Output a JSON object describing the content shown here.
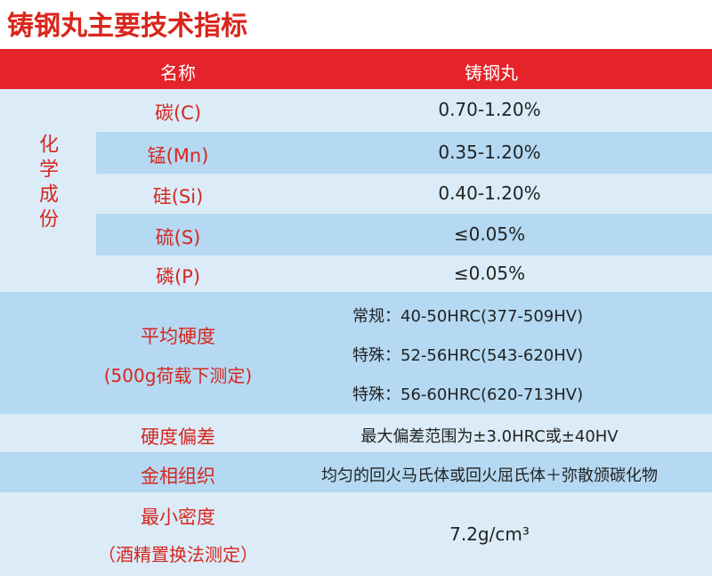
{
  "title": "铸钢丸主要技术指标",
  "header": [
    "名称",
    "铸钢丸"
  ],
  "chemical": {
    "label": "化学成份",
    "rows": [
      [
        "碳(C)",
        "0.70-1.20%"
      ],
      [
        "锰(Mn)",
        "0.35-1.20%"
      ],
      [
        "硅(Si)",
        "0.40-1.20%"
      ],
      [
        "硫(S)",
        "≤0.05%"
      ],
      [
        "磷(P)",
        "≤0.05%"
      ]
    ]
  },
  "hardness": {
    "label": "平均硬度",
    "note": "(500g荷载下测定)",
    "values": [
      "常规：40-50HRC(377-509HV)",
      "特殊：52-56HRC(543-620HV)",
      "特殊：56-60HRC(620-713HV)"
    ]
  },
  "rows": [
    [
      "硬度偏差",
      "最大偏差范围为±3.0HRC或±40HV"
    ],
    [
      "金相组织",
      "均匀的回火马氏体或回火屈氏体＋弥散颁碳化物"
    ]
  ],
  "density": {
    "label": "最小密度",
    "note": "（酒精置换法测定）",
    "value": "7.2g/cm³"
  }
}
